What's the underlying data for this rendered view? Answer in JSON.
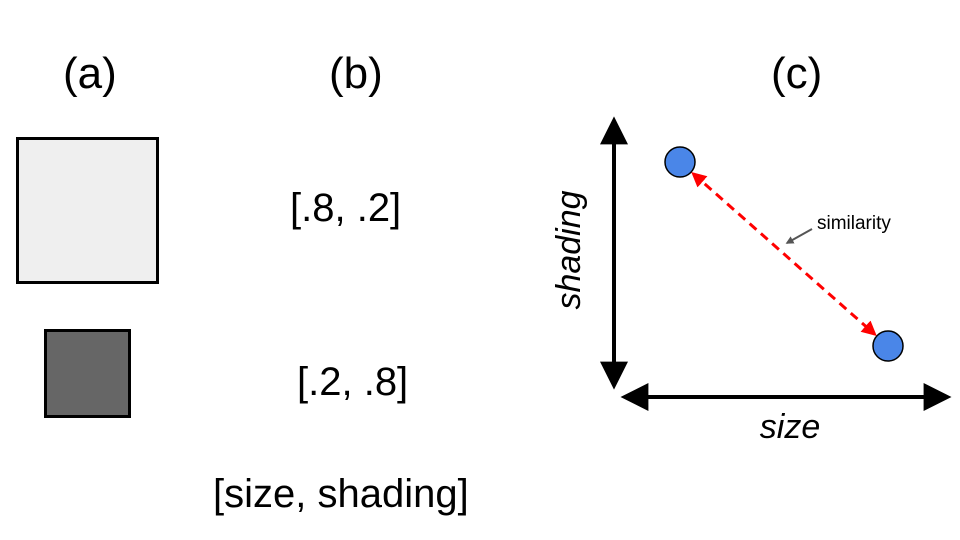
{
  "panels": {
    "a": {
      "label": "(a)"
    },
    "b": {
      "label": "(b)"
    },
    "c": {
      "label": "(c)"
    }
  },
  "squares": {
    "large": {
      "fill": "#efefef"
    },
    "small": {
      "fill": "#666666"
    }
  },
  "vectors": {
    "large_square": "[.8, .2]",
    "small_square": "[.2, .8]",
    "legend": "[size, shading]"
  },
  "plot": {
    "x_axis_label": "size",
    "y_axis_label": "shading",
    "similarity_label": "similarity",
    "point_color": "#4a86e8",
    "similarity_line_color": "#ff0000",
    "pointer_color": "#555555",
    "points": [
      {
        "size": 0.2,
        "shading": 0.8
      },
      {
        "size": 0.8,
        "shading": 0.2
      }
    ]
  }
}
